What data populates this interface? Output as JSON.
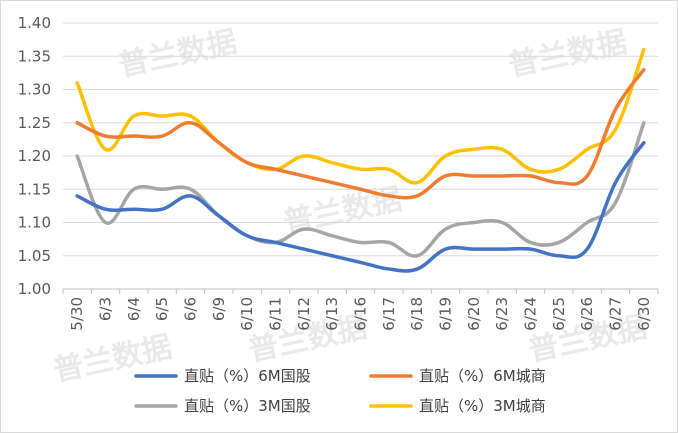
{
  "chart_data": {
    "type": "line",
    "title": "",
    "xlabel": "",
    "ylabel": "",
    "ylim": [
      1.0,
      1.4
    ],
    "yticks": [
      1.0,
      1.05,
      1.1,
      1.15,
      1.2,
      1.25,
      1.3,
      1.35,
      1.4
    ],
    "ytick_labels": [
      "1.00",
      "1.05",
      "1.10",
      "1.15",
      "1.20",
      "1.25",
      "1.30",
      "1.35",
      "1.40"
    ],
    "grid": "horizontal",
    "legend_position": "bottom",
    "categories": [
      "5/30",
      "6/3",
      "6/4",
      "6/5",
      "6/6",
      "6/9",
      "6/10",
      "6/11",
      "6/12",
      "6/13",
      "6/16",
      "6/17",
      "6/18",
      "6/19",
      "6/20",
      "6/23",
      "6/24",
      "6/25",
      "6/26",
      "6/27",
      "6/30"
    ],
    "series": [
      {
        "name": "直贴（%）6M国股",
        "color": "#4472c4",
        "values": [
          1.14,
          1.12,
          1.12,
          1.12,
          1.14,
          1.11,
          1.08,
          1.07,
          1.06,
          1.05,
          1.04,
          1.03,
          1.03,
          1.06,
          1.06,
          1.06,
          1.06,
          1.05,
          1.06,
          1.16,
          1.22
        ]
      },
      {
        "name": "直贴（%）6M城商",
        "color": "#ed7d31",
        "values": [
          1.25,
          1.23,
          1.23,
          1.23,
          1.25,
          1.22,
          1.19,
          1.18,
          1.17,
          1.16,
          1.15,
          1.14,
          1.14,
          1.17,
          1.17,
          1.17,
          1.17,
          1.16,
          1.17,
          1.27,
          1.33
        ]
      },
      {
        "name": "直贴（%）3M国股",
        "color": "#a5a5a5",
        "values": [
          1.2,
          1.1,
          1.15,
          1.15,
          1.15,
          1.11,
          1.08,
          1.07,
          1.09,
          1.08,
          1.07,
          1.07,
          1.05,
          1.09,
          1.1,
          1.1,
          1.07,
          1.07,
          1.1,
          1.13,
          1.25
        ]
      },
      {
        "name": "直贴（%）3M城商",
        "color": "#ffc000",
        "values": [
          1.31,
          1.21,
          1.26,
          1.26,
          1.26,
          1.22,
          1.19,
          1.18,
          1.2,
          1.19,
          1.18,
          1.18,
          1.16,
          1.2,
          1.21,
          1.21,
          1.18,
          1.18,
          1.21,
          1.24,
          1.36
        ]
      }
    ],
    "watermark": "普兰数据"
  }
}
